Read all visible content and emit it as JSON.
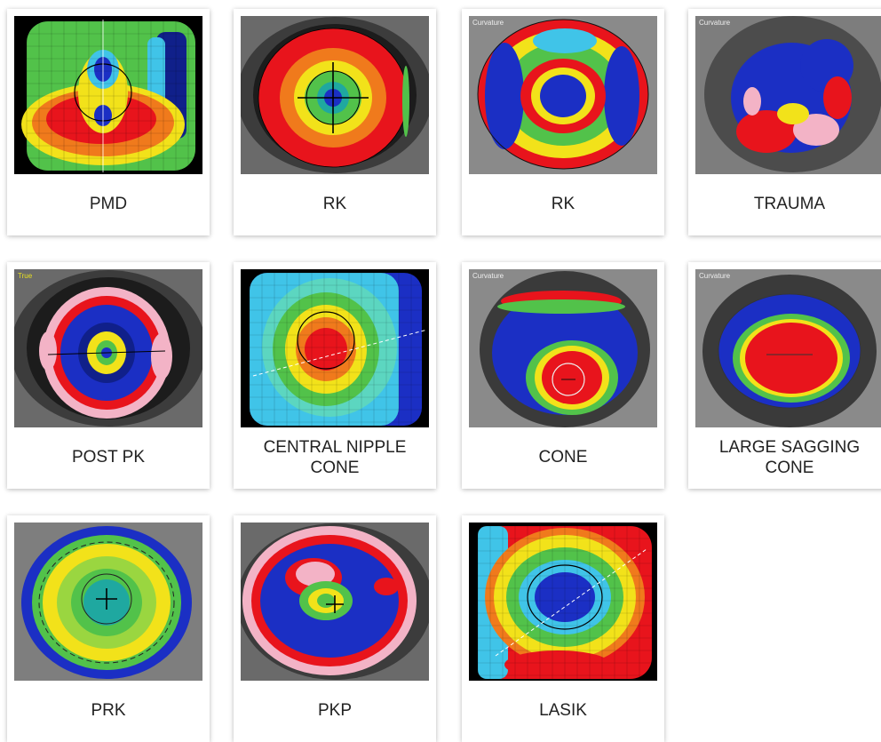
{
  "figure": {
    "tiles": [
      {
        "label": "PMD",
        "style": "pmd",
        "corner_text": ""
      },
      {
        "label": "RK",
        "style": "rk1",
        "corner_text": ""
      },
      {
        "label": "RK",
        "style": "rk2",
        "corner_text": "Curvature"
      },
      {
        "label": "TRAUMA",
        "style": "trauma",
        "corner_text": "Curvature"
      },
      {
        "label": "POST PK",
        "style": "postpk",
        "corner_text": "True"
      },
      {
        "label": "CENTRAL NIPPLE\nCONE",
        "style": "nipple",
        "corner_text": ""
      },
      {
        "label": "CONE",
        "style": "cone",
        "corner_text": "Curvature"
      },
      {
        "label": "LARGE SAGGING\nCONE",
        "style": "sagging",
        "corner_text": "Curvature"
      },
      {
        "label": "PRK",
        "style": "prk",
        "corner_text": ""
      },
      {
        "label": "PKP",
        "style": "pkp",
        "corner_text": ""
      },
      {
        "label": "LASIK",
        "style": "lasik",
        "corner_text": ""
      }
    ],
    "palette": {
      "pink": "#f3b3c6",
      "red": "#e8141c",
      "orange": "#f07a1c",
      "yellow": "#f2e21a",
      "green": "#52c24a",
      "teal": "#1fa8a0",
      "cyan": "#40c4e8",
      "blue": "#1b2fc4",
      "dark_blue": "#10208a"
    }
  }
}
